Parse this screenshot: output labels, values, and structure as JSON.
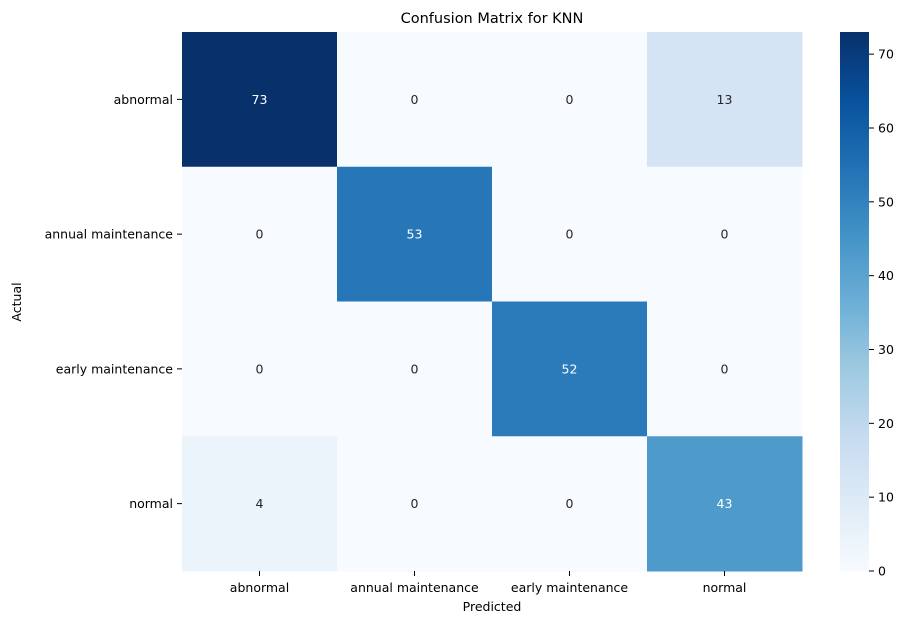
{
  "chart_data": {
    "type": "heatmap",
    "title": "Confusion Matrix for KNN",
    "xlabel": "Predicted",
    "ylabel": "Actual",
    "x_categories": [
      "abnormal",
      "annual maintenance",
      "early maintenance",
      "normal"
    ],
    "y_categories": [
      "abnormal",
      "annual maintenance",
      "early maintenance",
      "normal"
    ],
    "values": [
      [
        73,
        0,
        0,
        13
      ],
      [
        0,
        53,
        0,
        0
      ],
      [
        0,
        0,
        52,
        0
      ],
      [
        4,
        0,
        0,
        43
      ]
    ],
    "colormap": "Blues",
    "vmin": 0,
    "vmax": 73,
    "colorbar_ticks": [
      "0",
      "10",
      "20",
      "30",
      "40",
      "50",
      "60",
      "70"
    ],
    "colors": {
      "low": "#f7fbff",
      "high": "#08306b",
      "annotation_dark": "#262626",
      "annotation_light": "#ffffff"
    }
  }
}
